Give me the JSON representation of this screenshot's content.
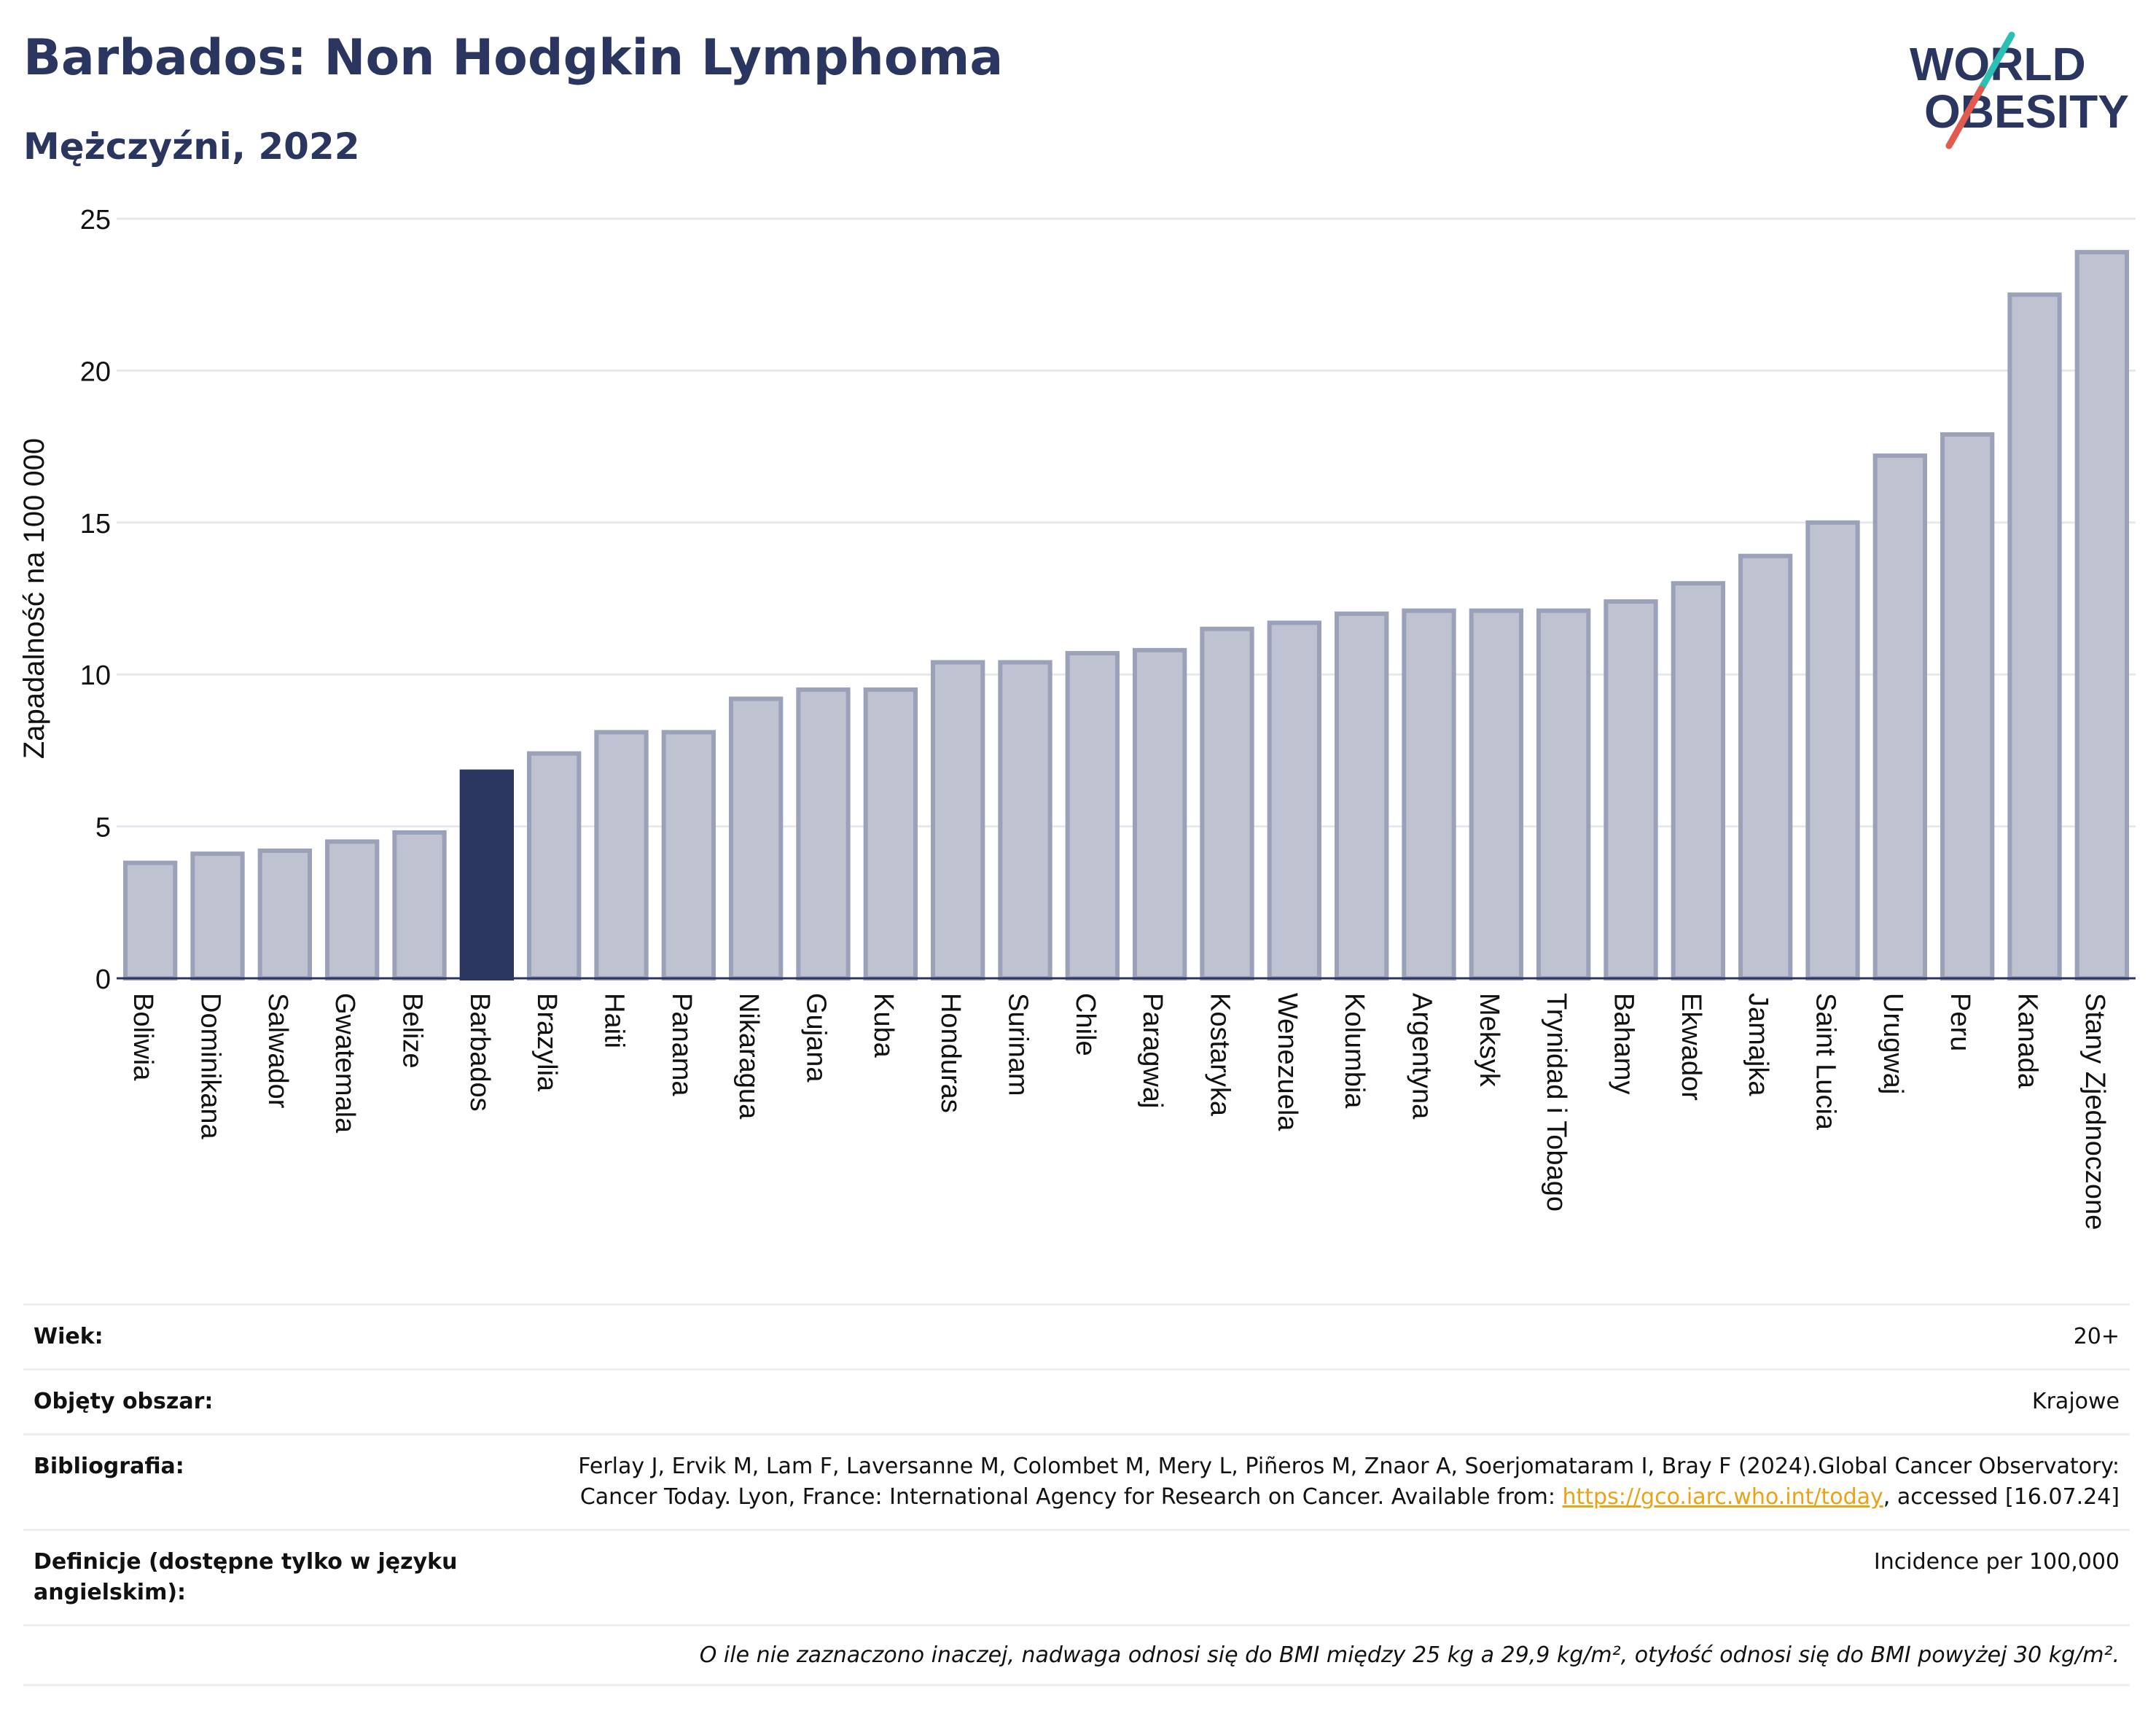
{
  "header": {
    "title": "Barbados: Non Hodgkin Lymphoma",
    "subtitle": "Mężczyźni, 2022"
  },
  "logo": {
    "line1": "WORLD",
    "line2": "OBESITY",
    "colors": {
      "text": "#2b3660",
      "slash_teal": "#2cbfb3",
      "slash_red": "#e35b4f"
    }
  },
  "colors": {
    "highlight": "#2b3660",
    "bar_fill": "#bfc3d1",
    "bar_stroke": "#9aa1b8",
    "grid": "#e6e8ee",
    "axis": "#2b3660"
  },
  "chart_data": {
    "type": "bar",
    "title": "Barbados: Non Hodgkin Lymphoma",
    "subtitle": "Mężczyźni, 2022",
    "xlabel": "",
    "ylabel": "Zapadalność na 100 000",
    "ylim": [
      0,
      25
    ],
    "yticks": [
      0,
      5,
      10,
      15,
      20,
      25
    ],
    "grid": true,
    "highlight": "Barbados",
    "categories": [
      "Boliwia",
      "Dominikana",
      "Salwador",
      "Gwatemala",
      "Belize",
      "Barbados",
      "Brazylia",
      "Haiti",
      "Panama",
      "Nikaragua",
      "Gujana",
      "Kuba",
      "Honduras",
      "Surinam",
      "Chile",
      "Paragwaj",
      "Kostaryka",
      "Wenezuela",
      "Kolumbia",
      "Argentyna",
      "Meksyk",
      "Trynidad i Tobago",
      "Bahamy",
      "Ekwador",
      "Jamajka",
      "Saint Lucia",
      "Urugwaj",
      "Peru",
      "Kanada",
      "Stany Zjednoczone"
    ],
    "values": [
      3.8,
      4.1,
      4.2,
      4.5,
      4.8,
      6.8,
      7.4,
      8.1,
      8.1,
      9.2,
      9.5,
      9.5,
      10.4,
      10.4,
      10.7,
      10.8,
      11.5,
      11.7,
      12.0,
      12.1,
      12.1,
      12.1,
      12.4,
      13.0,
      13.9,
      15.0,
      17.2,
      17.9,
      22.5,
      23.9
    ]
  },
  "meta": {
    "age_label": "Wiek:",
    "age_value": "20+",
    "coverage_label": "Objęty obszar:",
    "coverage_value": "Krajowe",
    "biblio_label": "Bibliografia:",
    "biblio_text1": "Ferlay J, Ervik M, Lam F, Laversanne M, Colombet M, Mery L, Piñeros M, Znaor A, Soerjomataram I, Bray F (2024).Global Cancer Observatory: Cancer Today. Lyon, France: International Agency for Research on Cancer. Available from: ",
    "biblio_link": "https://gco.iarc.who.int/today",
    "biblio_text2": ", accessed [16.07.24]",
    "def_label": "Definicje (dostępne tylko w języku angielskim):",
    "def_value": "Incidence per 100,000",
    "note": "O ile nie zaznaczono inaczej, nadwaga odnosi się do BMI między 25 kg a 29,9 kg/m², otyłość odnosi się do BMI powyżej 30 kg/m²."
  }
}
